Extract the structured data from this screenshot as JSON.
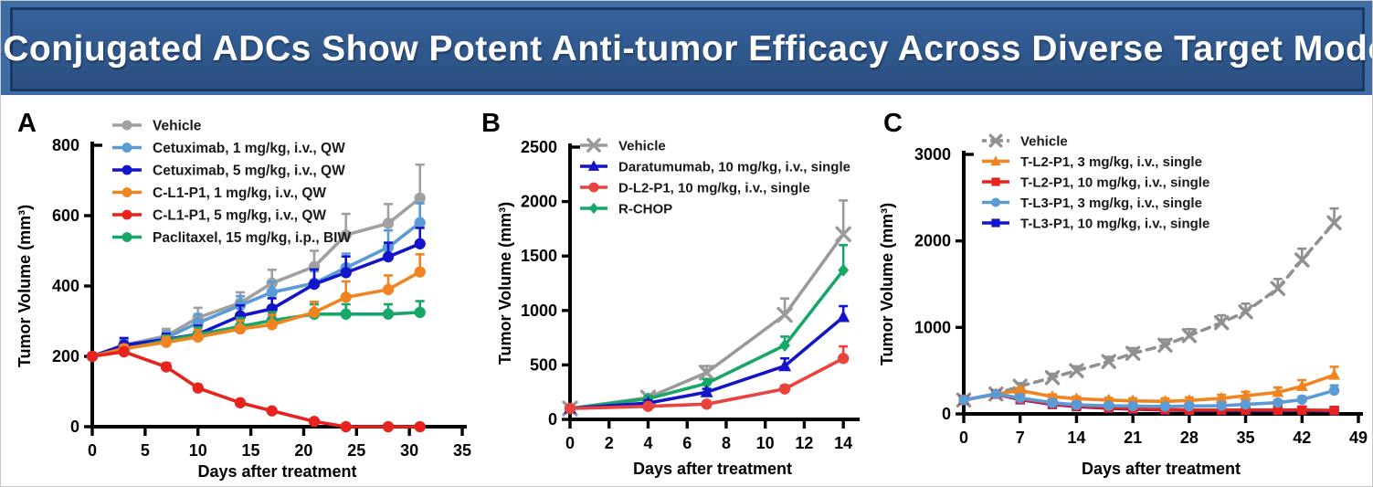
{
  "banner": {
    "title": "PI-Conjugated ADCs Show Potent Anti-tumor Efficacy Across Diverse Target Models",
    "bg_color": "#2e5588",
    "border_color": "#1a3a64",
    "text_color": "#ffffff"
  },
  "chart_data": [
    {
      "type": "line",
      "panel_label": "A",
      "xlabel": "Days after treatment",
      "ylabel": "Tumor Volume (mm³)",
      "xlim": [
        0,
        35
      ],
      "ylim": [
        0,
        800
      ],
      "xticks": [
        0,
        5,
        10,
        15,
        20,
        25,
        30,
        35
      ],
      "yticks": [
        0,
        200,
        400,
        600,
        800
      ],
      "grid": false,
      "legend_position": "top-left",
      "x": [
        0,
        3,
        7,
        10,
        14,
        17,
        21,
        24,
        28,
        31
      ],
      "series": [
        {
          "name": "Vehicle",
          "color": "#a0a0a0",
          "marker": "circle",
          "dashed": false,
          "values": [
            200,
            232,
            258,
            310,
            352,
            408,
            455,
            545,
            578,
            650
          ],
          "errors": [
            8,
            15,
            20,
            28,
            30,
            38,
            45,
            60,
            55,
            95
          ]
        },
        {
          "name": "Cetuximab, 1 mg/kg, i.v., QW",
          "color": "#5b9bd5",
          "marker": "circle",
          "dashed": false,
          "values": [
            200,
            230,
            253,
            295,
            345,
            382,
            408,
            452,
            510,
            580
          ],
          "errors": [
            8,
            14,
            18,
            24,
            26,
            30,
            34,
            40,
            48,
            55
          ]
        },
        {
          "name": "Cetuximab, 5 mg/kg, i.v., QW",
          "color": "#1414c8",
          "marker": "circle",
          "dashed": false,
          "values": [
            200,
            232,
            248,
            263,
            315,
            335,
            405,
            438,
            483,
            520
          ],
          "errors": [
            8,
            20,
            16,
            24,
            30,
            30,
            42,
            46,
            40,
            45
          ]
        },
        {
          "name": "Paclitaxel, 15 mg/kg, i.p., BIW",
          "color": "#17a769",
          "marker": "circle",
          "dashed": false,
          "values": [
            200,
            220,
            245,
            262,
            285,
            302,
            320,
            320,
            320,
            325
          ],
          "errors": [
            8,
            10,
            14,
            20,
            24,
            24,
            28,
            28,
            28,
            32
          ]
        },
        {
          "name": "C-L1-P1, 1 mg/kg, i.v., QW",
          "color": "#f08421",
          "marker": "circle",
          "dashed": false,
          "values": [
            200,
            222,
            240,
            255,
            278,
            290,
            325,
            368,
            390,
            440
          ],
          "errors": [
            8,
            10,
            15,
            20,
            24,
            28,
            30,
            45,
            40,
            50
          ]
        },
        {
          "name": "C-L1-P1, 5 mg/kg, i.v., QW",
          "color": "#e8231e",
          "marker": "circle",
          "dashed": false,
          "values": [
            200,
            213,
            170,
            110,
            68,
            45,
            15,
            0,
            0,
            0
          ],
          "errors": [
            8,
            10,
            10,
            8,
            6,
            5,
            4,
            0,
            0,
            0
          ]
        }
      ],
      "legend_order": [
        0,
        1,
        2,
        4,
        5,
        3
      ]
    },
    {
      "type": "line",
      "panel_label": "B",
      "xlabel": "Days after treatment",
      "ylabel": "Tumor Volume (mm³)",
      "xlim": [
        0,
        14.6
      ],
      "ylim": [
        0,
        2500
      ],
      "xticks": [
        0,
        2,
        4,
        6,
        8,
        10,
        12,
        14
      ],
      "yticks": [
        0,
        500,
        1000,
        1500,
        2000,
        2500
      ],
      "grid": false,
      "legend_position": "top-left",
      "x": [
        0,
        4,
        7,
        11,
        14
      ],
      "series": [
        {
          "name": "Vehicle",
          "color": "#9a9a9a",
          "marker": "x",
          "dashed": false,
          "values": [
            100,
            200,
            430,
            960,
            1700
          ],
          "errors": [
            15,
            30,
            60,
            150,
            310
          ]
        },
        {
          "name": "R-CHOP",
          "color": "#17a769",
          "marker": "diamond",
          "dashed": false,
          "values": [
            100,
            190,
            330,
            680,
            1370
          ],
          "errors": [
            12,
            25,
            40,
            80,
            230
          ]
        },
        {
          "name": "Daratumumab, 10 mg/kg, i.v., single",
          "color": "#1414c8",
          "marker": "triangle",
          "dashed": false,
          "values": [
            100,
            150,
            250,
            490,
            940
          ],
          "errors": [
            12,
            25,
            30,
            70,
            100
          ]
        },
        {
          "name": "D-L2-P1, 10 mg/kg, i.v., single",
          "color": "#e8433c",
          "marker": "circle",
          "dashed": false,
          "values": [
            100,
            120,
            140,
            280,
            560
          ],
          "errors": [
            10,
            20,
            20,
            30,
            110
          ]
        }
      ],
      "legend_order": [
        0,
        2,
        3,
        1
      ]
    },
    {
      "type": "line",
      "panel_label": "C",
      "xlabel": "Days after treatment",
      "ylabel": "Tumor Volume (mm³)",
      "xlim": [
        0,
        49
      ],
      "ylim": [
        0,
        3000
      ],
      "xticks": [
        0,
        7,
        14,
        21,
        28,
        35,
        42,
        49
      ],
      "yticks": [
        0,
        1000,
        2000,
        3000
      ],
      "grid": false,
      "legend_position": "top-left",
      "x": [
        0,
        4,
        7,
        11,
        14,
        18,
        21,
        25,
        28,
        32,
        35,
        39,
        42,
        46
      ],
      "series": [
        {
          "name": "Vehicle",
          "color": "#909090",
          "marker": "x",
          "dashed": true,
          "values": [
            160,
            230,
            320,
            420,
            500,
            605,
            700,
            795,
            905,
            1055,
            1180,
            1450,
            1780,
            2210
          ],
          "errors": [
            20,
            25,
            35,
            45,
            50,
            55,
            60,
            65,
            75,
            85,
            95,
            110,
            130,
            165
          ]
        },
        {
          "name": "T-L2-P1, 3 mg/kg, i.v., single",
          "color": "#f08421",
          "marker": "triangle",
          "dashed": false,
          "values": [
            160,
            230,
            270,
            200,
            175,
            160,
            150,
            145,
            155,
            180,
            210,
            250,
            320,
            450
          ],
          "errors": [
            15,
            20,
            30,
            25,
            25,
            25,
            30,
            35,
            35,
            40,
            45,
            55,
            70,
            95
          ]
        },
        {
          "name": "T-L3-P1, 10 mg/kg, i.v., single",
          "color": "#1414c8",
          "marker": "square",
          "dashed": false,
          "values": [
            160,
            230,
            165,
            110,
            85,
            65,
            55,
            45,
            40,
            40,
            40,
            40,
            40,
            35
          ],
          "errors": [
            10,
            12,
            10,
            8,
            8,
            6,
            6,
            6,
            6,
            6,
            6,
            6,
            6,
            6
          ]
        },
        {
          "name": "T-L2-P1, 10 mg/kg, i.v., single",
          "color": "#e8231e",
          "marker": "square",
          "dashed": false,
          "values": [
            160,
            230,
            170,
            115,
            90,
            70,
            60,
            50,
            45,
            45,
            45,
            45,
            45,
            40
          ],
          "errors": [
            10,
            15,
            12,
            10,
            8,
            8,
            8,
            8,
            8,
            8,
            8,
            8,
            8,
            8
          ]
        },
        {
          "name": "T-L3-P1, 3 mg/kg, i.v., single",
          "color": "#5b9bd5",
          "marker": "circle",
          "dashed": false,
          "values": [
            160,
            230,
            185,
            130,
            105,
            95,
            90,
            85,
            90,
            95,
            110,
            130,
            165,
            270
          ],
          "errors": [
            15,
            18,
            18,
            15,
            15,
            15,
            15,
            15,
            18,
            18,
            22,
            28,
            35,
            60
          ]
        }
      ],
      "legend_order": [
        0,
        1,
        3,
        4,
        2
      ]
    }
  ]
}
